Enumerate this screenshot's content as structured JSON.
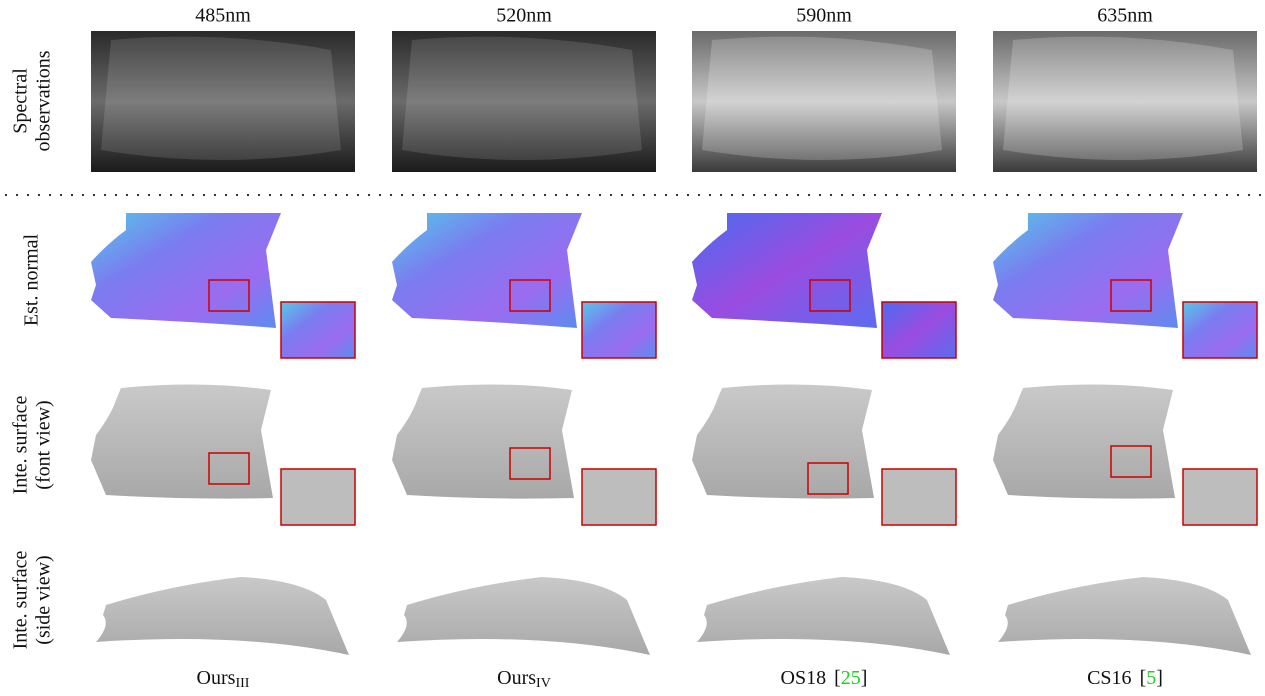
{
  "column_headers": [
    "485nm",
    "520nm",
    "590nm",
    "635nm"
  ],
  "row_labels": [
    [
      "Spectral",
      "observations"
    ],
    [
      "Est. normal"
    ],
    [
      "Inte. surface",
      "(font view)"
    ],
    [
      "Inte. surface",
      "(side view)"
    ]
  ],
  "methods": [
    {
      "name": "Ours",
      "subscript": "III"
    },
    {
      "name": "Ours",
      "subscript": "IV"
    },
    {
      "name": "OS18",
      "cite": [
        "[",
        "25",
        "]"
      ]
    },
    {
      "name": "CS16",
      "cite": [
        "[",
        "5",
        "]"
      ]
    }
  ]
}
